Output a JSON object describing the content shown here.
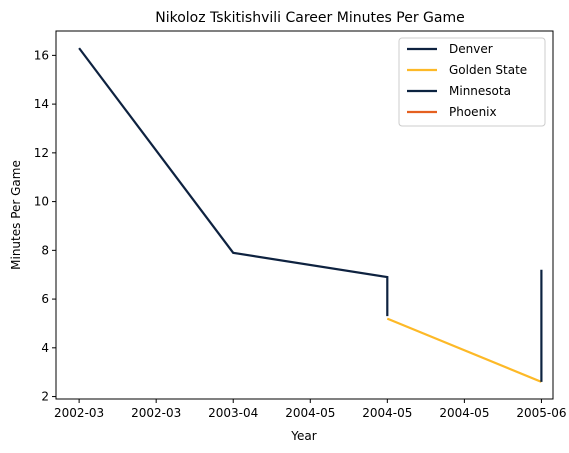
{
  "chart_data": {
    "type": "line",
    "title": "Nikoloz Tskitishvili Career Minutes Per Game",
    "xlabel": "Year",
    "ylabel": "Minutes Per Game",
    "x_tick_labels": [
      "2002-03",
      "2002-03",
      "2003-04",
      "2004-05",
      "2004-05",
      "2004-05",
      "2005-06"
    ],
    "x_tick_positions": [
      0,
      1,
      2,
      3,
      4,
      5,
      6
    ],
    "xlim": [
      -0.3,
      6.15
    ],
    "yticks": [
      2,
      4,
      6,
      8,
      10,
      12,
      14,
      16
    ],
    "ylim": [
      1.9,
      17.0
    ],
    "grid": false,
    "legend_position": "top-right",
    "series": [
      {
        "name": "Denver",
        "color": "#0E2240",
        "points": [
          [
            0,
            16.3
          ],
          [
            2,
            7.9
          ],
          [
            4,
            6.9
          ],
          [
            4,
            5.3
          ]
        ]
      },
      {
        "name": "Golden State",
        "color": "#FDB927",
        "points": [
          [
            4,
            5.2
          ],
          [
            6,
            2.6
          ]
        ]
      },
      {
        "name": "Minnesota",
        "color": "#0C2340",
        "points": [
          [
            6,
            2.6
          ],
          [
            6,
            7.2
          ]
        ]
      },
      {
        "name": "Phoenix",
        "color": "#E56020",
        "points": []
      }
    ]
  }
}
